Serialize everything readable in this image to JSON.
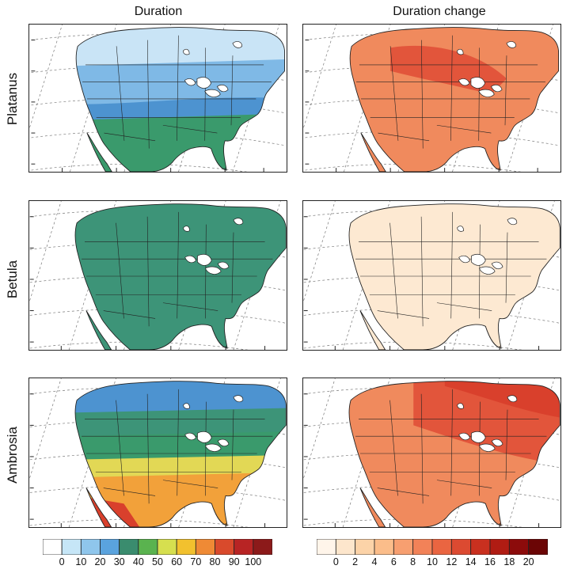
{
  "column_titles": [
    "Duration",
    "Duration change"
  ],
  "row_labels": [
    "Platanus",
    "Betula",
    "Ambrosia"
  ],
  "maps": [
    {
      "row": "Platanus",
      "column": "Duration",
      "dominant_range": "10-50",
      "pattern": "north light blue 10-20, central blue 20-30, south green 30-50"
    },
    {
      "row": "Platanus",
      "column": "Duration change",
      "dominant_range": "8-14",
      "pattern": "mostly orange 8-12, darker 12-14 in central north"
    },
    {
      "row": "Betula",
      "column": "Duration",
      "dominant_range": "30-40",
      "pattern": "uniform teal green 30-40"
    },
    {
      "row": "Betula",
      "column": "Duration change",
      "dominant_range": "0-2",
      "pattern": "uniform pale cream 0-2"
    },
    {
      "row": "Ambrosia",
      "column": "Duration",
      "dominant_range": "10-90",
      "pattern": "north blue, central green, south yellow/orange, Mexico & Florida red"
    },
    {
      "row": "Ambrosia",
      "column": "Duration change",
      "dominant_range": "10-20",
      "pattern": "orange red 10-14 west, dark red 14-18 northeast"
    }
  ],
  "colorbars": [
    {
      "name": "duration",
      "labels": [
        "0",
        "10",
        "20",
        "30",
        "40",
        "50",
        "60",
        "70",
        "80",
        "90",
        "100"
      ],
      "colors": [
        "#ffffff",
        "#c6e6f7",
        "#8fc6ec",
        "#5aa3de",
        "#3a8c6e",
        "#5ab34f",
        "#d6df4f",
        "#f2c12e",
        "#ef8a35",
        "#d94a2c",
        "#b82424",
        "#8c1a1a"
      ]
    },
    {
      "name": "duration change",
      "labels": [
        "0",
        "2",
        "4",
        "6",
        "8",
        "10",
        "12",
        "14",
        "16",
        "18",
        "20"
      ],
      "colors": [
        "#fff5ea",
        "#fde6cc",
        "#fcd3a8",
        "#fbbd8a",
        "#f79f70",
        "#f28258",
        "#ea6541",
        "#dc4a31",
        "#c9301f",
        "#b01c13",
        "#8c0b0b",
        "#6b0505"
      ]
    }
  ],
  "palette": {
    "land_light_blue": "#c9e4f6",
    "land_blue": "#7fb9e6",
    "land_mid_blue": "#4d93d0",
    "land_green": "#3a9a6c",
    "land_teal": "#3d9478",
    "land_orange": "#f08a5d",
    "land_dark_orange": "#e2553b",
    "land_cream": "#fde9d2",
    "land_yellow": "#e2d855",
    "land_red": "#d9402c",
    "water": "#ffffff",
    "border": "#222222"
  }
}
